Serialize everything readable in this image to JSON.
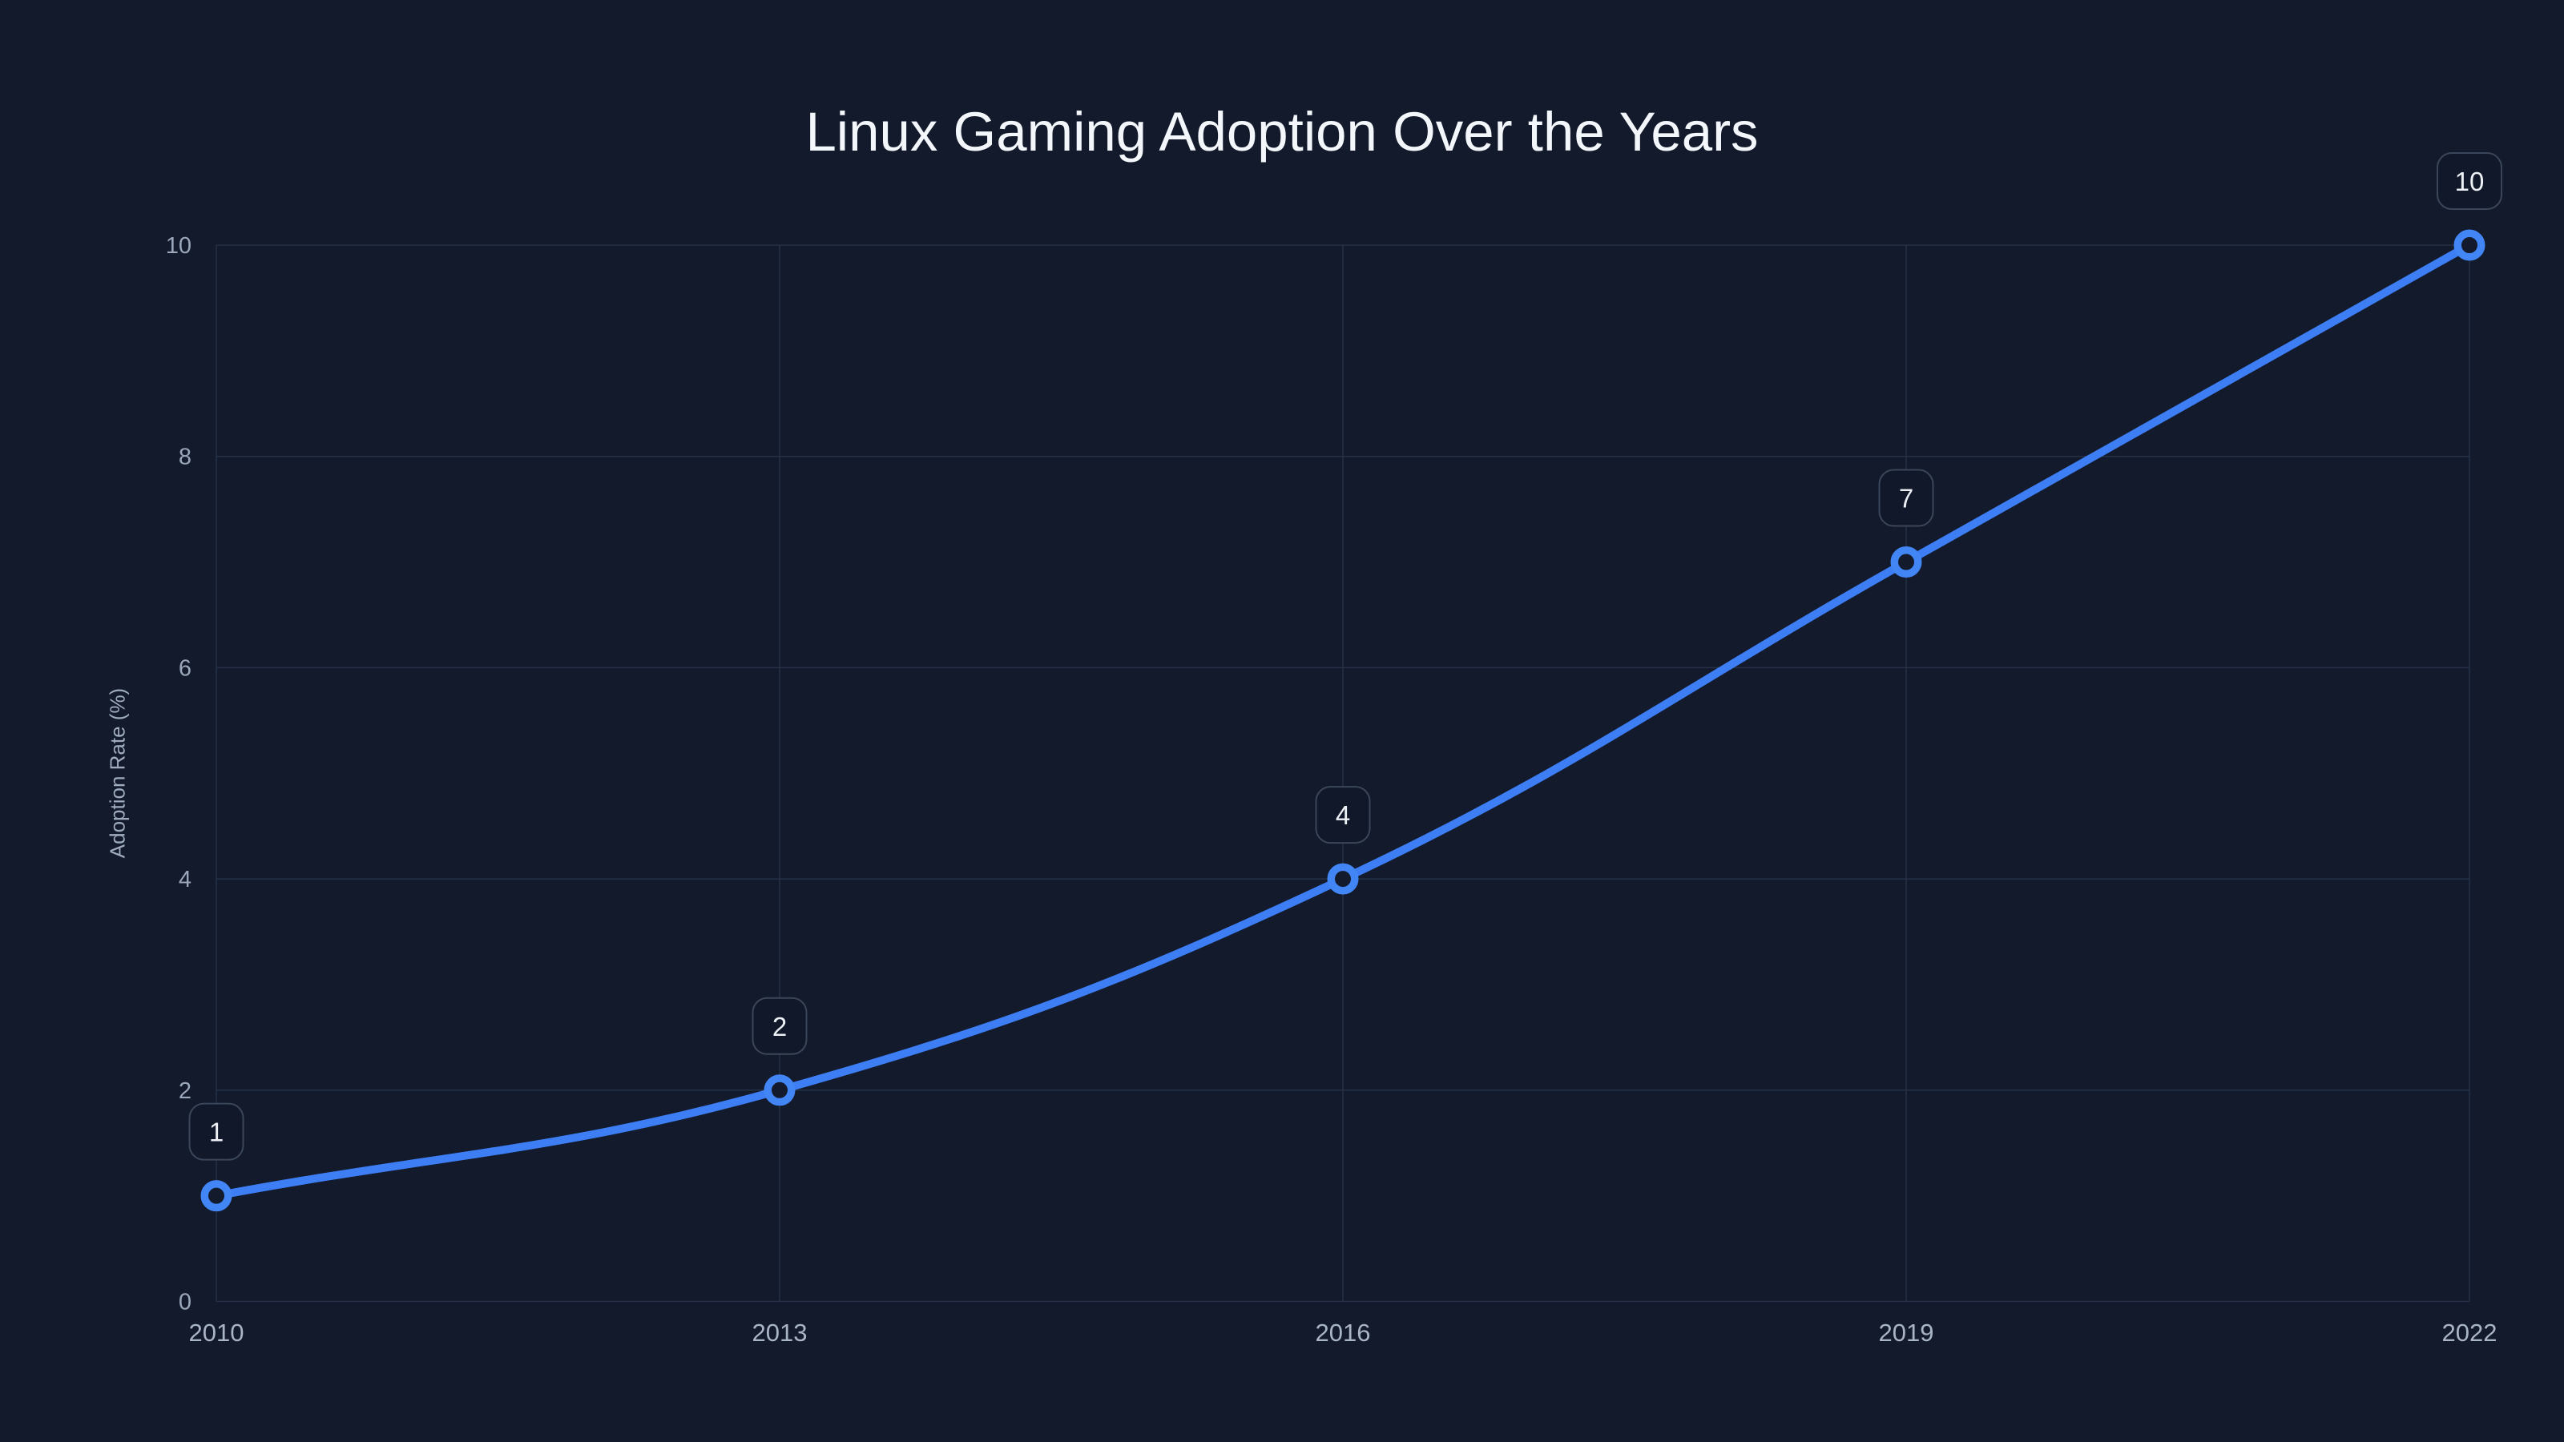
{
  "chart_data": {
    "type": "line",
    "title": "Linux Gaming Adoption Over the Years",
    "xlabel": "",
    "ylabel": "Adoption Rate (%)",
    "x": [
      2010,
      2013,
      2016,
      2019,
      2022
    ],
    "x_tick_labels": [
      "2010",
      "2013",
      "2016",
      "2019",
      "2022"
    ],
    "series": [
      {
        "name": "Adoption Rate (%)",
        "values": [
          1,
          2,
          4,
          7,
          10
        ]
      }
    ],
    "point_labels": [
      "1",
      "2",
      "4",
      "7",
      "10"
    ],
    "yticks": [
      0,
      2,
      4,
      6,
      8,
      10
    ],
    "ylim": [
      0,
      10
    ],
    "xlim": [
      2010,
      2022
    ],
    "grid": true,
    "legend": "none",
    "line_tension": 0.4,
    "colors": {
      "background": "#121a2b",
      "line": "#3e7ef5",
      "marker_stroke": "#4285f5",
      "marker_fill": "#121a2b",
      "grid": "#263147",
      "title_text": "#f3f6fa",
      "y_tick_text": "#9aa6ba",
      "x_tick_text": "#a9b4c6",
      "axis_label_text": "#9fabbf",
      "badge_fill": "#101829",
      "badge_border": "#3b465a",
      "badge_text": "#edf0f5"
    }
  }
}
